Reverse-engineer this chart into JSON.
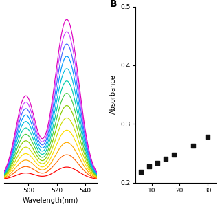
{
  "panel_b_label": "B",
  "scatter_x": [
    6,
    9,
    12,
    15,
    18,
    25,
    30
  ],
  "scatter_y": [
    0.218,
    0.228,
    0.234,
    0.24,
    0.248,
    0.263,
    0.278
  ],
  "scatter_color": "#111111",
  "scatter_marker": "s",
  "scatter_size": 22,
  "ylabel_b": "Absorbance",
  "ylim_b": [
    0.2,
    0.5
  ],
  "xlim_b": [
    4,
    33
  ],
  "yticks_b": [
    0.2,
    0.3,
    0.4,
    0.5
  ],
  "xticks_b": [
    10,
    20,
    30
  ],
  "xlabel_a": "Wavelength(nm)",
  "xlim_a": [
    483,
    548
  ],
  "xticks_a": [
    500,
    520,
    540
  ],
  "ylim_a": [
    -0.02,
    1.08
  ],
  "n_spectra": 13,
  "peak1_wl": 498,
  "peak1_sigma": 7.0,
  "peak1_amp": 0.52,
  "peak2_wl": 527,
  "peak2_sigma": 8.5,
  "peak2_amp": 1.0,
  "background_color": "#ffffff",
  "spectrum_colors": [
    "#ff0000",
    "#ff6600",
    "#ffaa00",
    "#ffdd00",
    "#ccdd00",
    "#88cc00",
    "#44cc44",
    "#00ccaa",
    "#00bbdd",
    "#0099ff",
    "#4466ff",
    "#cc44ff",
    "#dd00bb"
  ]
}
